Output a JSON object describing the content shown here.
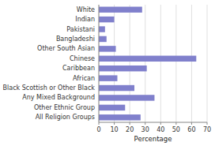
{
  "chart_data": {
    "type": "bar",
    "orientation": "horizontal",
    "categories": [
      "All Religion Groups",
      "Other Ethnic Group",
      "Any Mixed Background",
      "Black Scottish or Other Black",
      "African",
      "Caribbean",
      "Chinese",
      "Other South Asian",
      "Bangladeshi",
      "Pakistani",
      "Indian",
      "White"
    ],
    "values": [
      27,
      17,
      36,
      23,
      12,
      31,
      63,
      11,
      5,
      4,
      10,
      28
    ],
    "color": "#8080cc",
    "xlabel": "Percentage",
    "xlim": [
      0,
      70
    ],
    "xticks": [
      0,
      10,
      20,
      30,
      40,
      50,
      60,
      70
    ],
    "grid": true
  }
}
